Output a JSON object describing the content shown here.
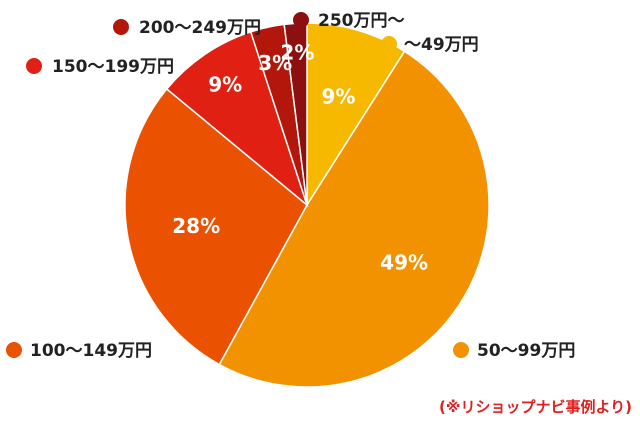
{
  "chart_data": {
    "type": "pie",
    "categories": [
      "〜49万円",
      "50〜99万円",
      "100〜149万円",
      "150〜199万円",
      "200〜249万円",
      "250万円〜"
    ],
    "values": [
      9,
      49,
      28,
      9,
      3,
      2
    ],
    "value_labels": [
      "9%",
      "49%",
      "28%",
      "9%",
      "3%",
      "2%"
    ],
    "colors": [
      "#f7b800",
      "#f39200",
      "#ea5100",
      "#df2013",
      "#b3170c",
      "#8c1010"
    ],
    "legend_placement": "around"
  },
  "source_note": "(※リショップナビ事例より)"
}
